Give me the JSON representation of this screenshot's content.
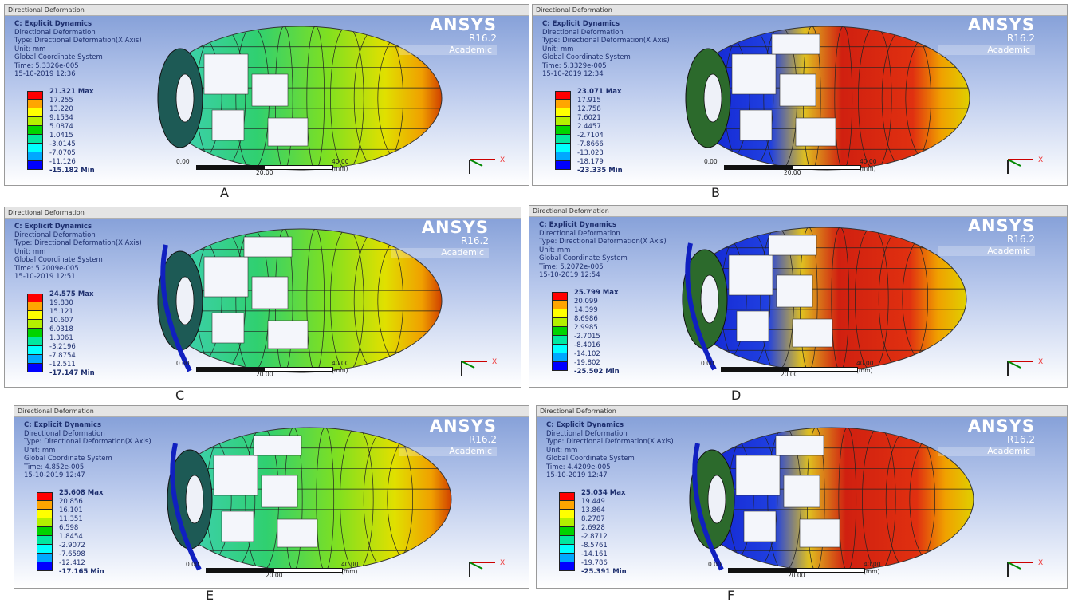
{
  "common": {
    "title_bar": "Directional Deformation",
    "logo": {
      "name": "ANSYS",
      "version": "R16.2",
      "edition": "Academic"
    },
    "legend_colors": [
      "#ff0000",
      "#ffa500",
      "#ffff00",
      "#b4f000",
      "#00d400",
      "#00e8a0",
      "#00ffff",
      "#00a8ff",
      "#0000ff"
    ],
    "scale": {
      "start": "0.00",
      "mid": "20.00",
      "end": "40.00 (mm)"
    },
    "triad_axis": "X"
  },
  "panels": [
    {
      "caption": "A",
      "scheme": "green-yellow",
      "info": [
        "C: Explicit Dynamics",
        "Directional Deformation",
        "Type: Directional Deformation(X Axis)",
        "Unit: mm",
        "Global Coordinate System",
        "Time: 5.3326e-005",
        "15-10-2019 12:36"
      ],
      "legend": [
        "21.321 Max",
        "17.255",
        "13.220",
        "9.1534",
        "5.0874",
        "1.0415",
        "-3.0145",
        "-7.0705",
        "-11.126",
        "-15.182 Min"
      ]
    },
    {
      "caption": "B",
      "scheme": "blue-red",
      "info": [
        "C: Explicit Dynamics",
        "Directional Deformation",
        "Type: Directional Deformation(X Axis)",
        "Unit: mm",
        "Global Coordinate System",
        "Time: 5.3329e-005",
        "15-10-2019 12:34"
      ],
      "legend": [
        "23.071 Max",
        "17.915",
        "12.758",
        "7.6021",
        "2.4457",
        "-2.7104",
        "-7.8666",
        "-13.023",
        "-18.179",
        "-23.335 Min"
      ]
    },
    {
      "caption": "C",
      "scheme": "green-yellow",
      "info": [
        "C: Explicit Dynamics",
        "Directional Deformation",
        "Type: Directional Deformation(X Axis)",
        "Unit: mm",
        "Global Coordinate System",
        "Time: 5.2009e-005",
        "15-10-2019 12:51"
      ],
      "legend": [
        "24.575 Max",
        "19.830",
        "15.121",
        "10.607",
        "6.0318",
        "1.3061",
        "-3.2196",
        "-7.8754",
        "-12.511",
        "-17.147 Min"
      ]
    },
    {
      "caption": "D",
      "scheme": "blue-red",
      "info": [
        "C: Explicit Dynamics",
        "Directional Deformation",
        "Type: Directional Deformation(X Axis)",
        "Unit: mm",
        "Global Coordinate System",
        "Time: 5.2072e-005",
        "15-10-2019 12:54"
      ],
      "legend": [
        "25.799 Max",
        "20.099",
        "14.399",
        "8.6986",
        "2.9985",
        "-2.7015",
        "-8.4016",
        "-14.102",
        "-19.802",
        "-25.502 Min"
      ]
    },
    {
      "caption": "E",
      "scheme": "green-yellow",
      "info": [
        "C: Explicit Dynamics",
        "Directional Deformation",
        "Type: Directional Deformation(X Axis)",
        "Unit: mm",
        "Global Coordinate System",
        "Time: 4.852e-005",
        "15-10-2019 12:47"
      ],
      "legend": [
        "25.608 Max",
        "20.856",
        "16.101",
        "11.351",
        "6.598",
        "1.8454",
        "-2.9072",
        "-7.6598",
        "-12.412",
        "-17.165 Min"
      ]
    },
    {
      "caption": "F",
      "scheme": "blue-red",
      "info": [
        "C: Explicit Dynamics",
        "Directional Deformation",
        "Type: Directional Deformation(X Axis)",
        "Unit: mm",
        "Global Coordinate System",
        "Time: 4.4209e-005",
        "15-10-2019 12:47"
      ],
      "legend": [
        "25.034 Max",
        "19.449",
        "13.864",
        "8.2787",
        "2.6928",
        "-2.8712",
        "-8.5761",
        "-14.161",
        "-19.786",
        "-25.391 Min"
      ]
    }
  ]
}
